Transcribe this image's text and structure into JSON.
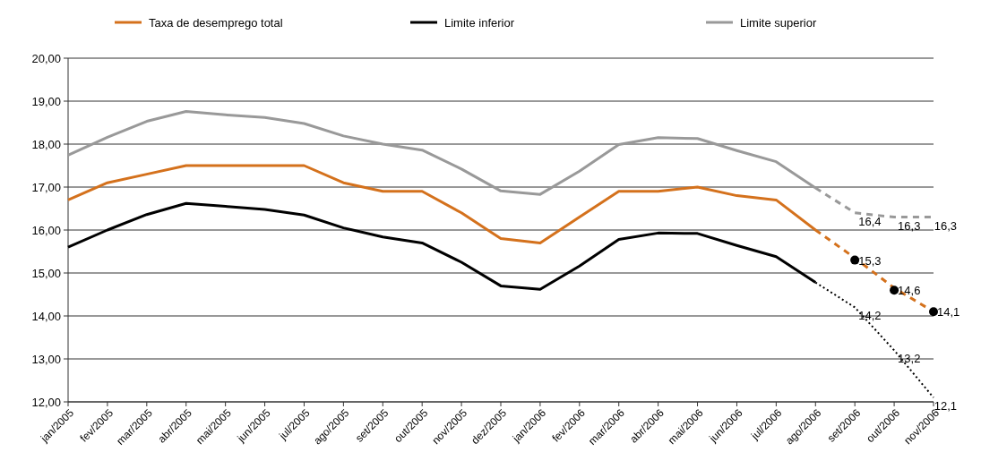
{
  "chart_data": {
    "type": "line",
    "categories": [
      "jan/2005",
      "fev/2005",
      "mar/2005",
      "abr/2005",
      "mai/2005",
      "jun/2005",
      "jul/2005",
      "ago/2005",
      "set/2005",
      "out/2005",
      "nov/2005",
      "dez/2005",
      "jan/2006",
      "fev/2006",
      "mar/2006",
      "abr/2006",
      "mai/2006",
      "jun/2006",
      "jul/2006",
      "ago/2006",
      "set/2006",
      "out/2006",
      "nov/2006"
    ],
    "series": [
      {
        "name": "Taxa de desemprego total",
        "color": "#d4711c",
        "values": [
          16.7,
          17.1,
          17.3,
          17.5,
          17.5,
          17.5,
          17.5,
          17.1,
          16.9,
          16.9,
          16.4,
          15.8,
          15.7,
          16.3,
          16.9,
          16.9,
          17.0,
          16.8,
          16.7,
          16.0,
          null,
          null,
          null
        ]
      },
      {
        "name": "Limite inferior",
        "color": "#000000",
        "values": [
          15.6,
          16.0,
          16.36,
          16.62,
          16.55,
          16.48,
          16.35,
          16.05,
          15.84,
          15.7,
          15.25,
          14.7,
          14.62,
          15.16,
          15.78,
          15.93,
          15.92,
          15.64,
          15.38,
          14.78,
          null,
          null,
          null
        ]
      },
      {
        "name": "Limite superior",
        "color": "#999999",
        "values": [
          17.74,
          18.16,
          18.53,
          18.76,
          18.68,
          18.62,
          18.48,
          18.19,
          18.0,
          17.86,
          17.42,
          16.91,
          16.83,
          17.37,
          17.99,
          18.15,
          18.13,
          17.85,
          17.59,
          16.98,
          null,
          null,
          null
        ]
      },
      {
        "color": "#d4711c",
        "line_style": "dashed",
        "values": [
          null,
          null,
          null,
          null,
          null,
          null,
          null,
          null,
          null,
          null,
          null,
          null,
          null,
          null,
          null,
          null,
          null,
          null,
          null,
          16.0,
          15.35,
          14.65,
          14.1
        ]
      },
      {
        "color": "#000000",
        "line_style": "dotted",
        "values": [
          null,
          null,
          null,
          null,
          null,
          null,
          null,
          null,
          null,
          null,
          null,
          null,
          null,
          null,
          null,
          null,
          null,
          null,
          null,
          14.78,
          14.2,
          13.2,
          12.1
        ],
        "value_labels": [
          null,
          null,
          null,
          null,
          null,
          null,
          null,
          null,
          null,
          null,
          null,
          null,
          null,
          null,
          null,
          null,
          null,
          null,
          null,
          null,
          "14,2",
          "13,2",
          "12,1"
        ]
      },
      {
        "color": "#999999",
        "line_style": "dashed",
        "values": [
          null,
          null,
          null,
          null,
          null,
          null,
          null,
          null,
          null,
          null,
          null,
          null,
          null,
          null,
          null,
          null,
          null,
          null,
          null,
          16.98,
          16.4,
          16.3,
          16.3
        ],
        "value_labels": [
          null,
          null,
          null,
          null,
          null,
          null,
          null,
          null,
          null,
          null,
          null,
          null,
          null,
          null,
          null,
          null,
          null,
          null,
          null,
          null,
          "16,4",
          "16,3",
          "16,3"
        ]
      },
      {
        "type": "scatter",
        "marker": "circle",
        "color": "#000000",
        "values": [
          null,
          null,
          null,
          null,
          null,
          null,
          null,
          null,
          null,
          null,
          null,
          null,
          null,
          null,
          null,
          null,
          null,
          null,
          null,
          null,
          15.3,
          14.6,
          14.1
        ],
        "value_labels": [
          null,
          null,
          null,
          null,
          null,
          null,
          null,
          null,
          null,
          null,
          null,
          null,
          null,
          null,
          null,
          null,
          null,
          null,
          null,
          null,
          "15,3",
          "14,6",
          "14,1"
        ]
      }
    ],
    "ylim": [
      12,
      20
    ],
    "yticks": [
      {
        "value": 12,
        "label": "12,00"
      },
      {
        "value": 13,
        "label": "13,00"
      },
      {
        "value": 14,
        "label": "14,00"
      },
      {
        "value": 15,
        "label": "15,00"
      },
      {
        "value": 16,
        "label": "16,00"
      },
      {
        "value": 17,
        "label": "17,00"
      },
      {
        "value": 18,
        "label": "18,00"
      },
      {
        "value": 19,
        "label": "19,00"
      },
      {
        "value": 20,
        "label": "20,00"
      }
    ],
    "grid": "y",
    "legend": "top"
  }
}
